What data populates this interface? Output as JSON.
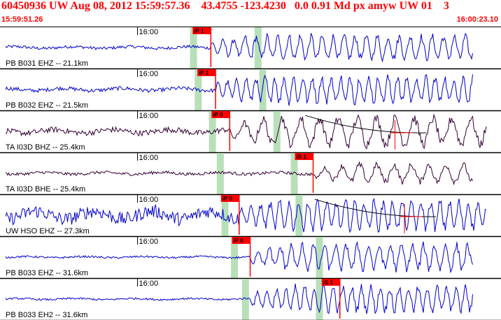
{
  "header": {
    "title": "60450936 UW Aug 08, 2012 15:59:57.36    43.4755 -123.4230   0.0 0.91 Md px amyw UW 01    3",
    "start_time": "15:59:51.26",
    "end_time": "16:00:23.10"
  },
  "colors": {
    "header_text": "#ff0000",
    "trace_blue": "#0000cc",
    "trace_dark": "#330033",
    "pick_flag": "#ff0000",
    "window_band": "#b8e0b8",
    "separator": "#000000"
  },
  "chart_data": {
    "type": "seismogram",
    "time_range": [
      "15:59:51.26",
      "16:00:23.10"
    ],
    "minute_label": "16:00",
    "traces": [
      {
        "label": "PB B031 EHZ -- 21.1km",
        "color": "#0000cc",
        "pick": "iP 1",
        "pick_t": 13.4,
        "bands": [
          12.3,
          16.4
        ],
        "onset": 13.4,
        "amp_pre": 0.08,
        "amp_post": 0.7,
        "wave_period": 0.7,
        "coda": false
      },
      {
        "label": "PB B032 EHZ -- 21.5km",
        "color": "#0000cc",
        "pick": "iP 1",
        "pick_t": 13.7,
        "bands": [
          12.6,
          16.7
        ],
        "onset": 13.7,
        "amp_pre": 0.1,
        "amp_post": 0.8,
        "wave_period": 0.6,
        "coda": false
      },
      {
        "label": "TA I03D BHZ -- 25.4km",
        "color": "#330033",
        "pick": "iP 0",
        "pick_t": 14.6,
        "bands": [
          13.5,
          17.6
        ],
        "onset": 14.6,
        "amp_pre": 0.15,
        "amp_post": 0.85,
        "wave_period": 1.2,
        "coda": true
      },
      {
        "label": "TA I03D BHE -- 25.4km",
        "color": "#330033",
        "pick": "iS 1",
        "pick_t": 19.9,
        "bands": [
          14.0,
          18.7
        ],
        "onset": 19.9,
        "amp_pre": 0.08,
        "amp_post": 0.55,
        "wave_period": 1.1,
        "coda": false
      },
      {
        "label": "UW HSO EHZ -- 27.3km",
        "color": "#0000cc",
        "pick": "iP 0",
        "pick_t": 15.2,
        "bands": [
          14.3,
          19.0
        ],
        "onset": 15.2,
        "amp_pre": 0.35,
        "amp_post": 0.85,
        "wave_period": 0.6,
        "coda": true
      },
      {
        "label": "PB B033 EHZ -- 31.6km",
        "color": "#0000cc",
        "pick": "iP 0",
        "pick_t": 15.9,
        "bands": [
          14.9,
          20.3
        ],
        "onset": 15.9,
        "amp_pre": 0.05,
        "amp_post": 0.75,
        "wave_period": 0.7,
        "coda": false
      },
      {
        "label": "PB B033 EH2 -- 31.6km",
        "color": "#0000cc",
        "pick": "iS 1",
        "pick_t": 21.6,
        "bands": [
          15.6,
          20.3
        ],
        "onset": 15.9,
        "amp_pre": 0.05,
        "amp_post": 0.75,
        "wave_period": 0.6,
        "coda": false
      }
    ]
  }
}
